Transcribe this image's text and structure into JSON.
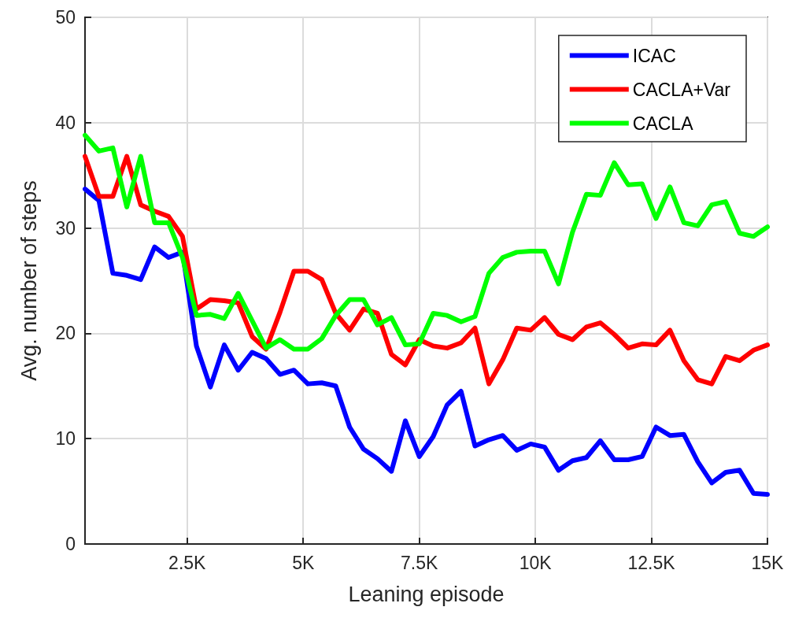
{
  "chart_data": {
    "type": "line",
    "xlabel": "Leaning episode",
    "ylabel": "Avg. number of steps",
    "x": [
      300,
      600,
      900,
      1200,
      1500,
      1800,
      2100,
      2400,
      2700,
      3000,
      3300,
      3600,
      3900,
      4200,
      4500,
      4800,
      5100,
      5400,
      5700,
      6000,
      6300,
      6600,
      6900,
      7200,
      7500,
      7800,
      8100,
      8400,
      8700,
      9000,
      9300,
      9600,
      9900,
      10200,
      10500,
      10800,
      11100,
      11400,
      11700,
      12000,
      12300,
      12600,
      12900,
      13200,
      13500,
      13800,
      14100,
      14400,
      14700,
      15000
    ],
    "series": [
      {
        "name": "ICAC",
        "color": "#0000ff",
        "values": [
          33.7,
          32.6,
          25.7,
          25.5,
          25.1,
          28.2,
          27.2,
          27.7,
          18.8,
          14.9,
          18.9,
          16.5,
          18.2,
          17.6,
          16.1,
          16.5,
          15.2,
          15.3,
          15.0,
          11.1,
          9.0,
          8.1,
          6.9,
          11.7,
          8.3,
          10.2,
          13.2,
          14.5,
          9.3,
          9.9,
          10.3,
          8.9,
          9.5,
          9.2,
          7.0,
          7.9,
          8.2,
          9.8,
          8.0,
          8.0,
          8.3,
          11.1,
          10.3,
          10.4,
          7.8,
          5.8,
          6.8,
          7.0,
          4.8,
          4.7
        ]
      },
      {
        "name": "CACLA+Var",
        "color": "#ff0000",
        "values": [
          36.8,
          33.0,
          33.0,
          36.8,
          32.2,
          31.6,
          31.1,
          29.2,
          22.3,
          23.2,
          23.1,
          22.9,
          19.7,
          18.5,
          22.0,
          25.9,
          25.9,
          25.1,
          21.9,
          20.3,
          22.3,
          21.9,
          18.0,
          17.0,
          19.4,
          18.8,
          18.6,
          19.1,
          20.5,
          15.2,
          17.5,
          20.5,
          20.3,
          21.5,
          19.9,
          19.4,
          20.6,
          21.0,
          19.9,
          18.6,
          19.0,
          18.9,
          20.3,
          17.4,
          15.6,
          15.2,
          17.8,
          17.4,
          18.4,
          18.9
        ]
      },
      {
        "name": "CACLA",
        "color": "#00ff00",
        "values": [
          38.8,
          37.3,
          37.6,
          32.0,
          36.8,
          30.5,
          30.5,
          27.2,
          21.7,
          21.8,
          21.4,
          23.8,
          21.2,
          18.6,
          19.4,
          18.5,
          18.5,
          19.5,
          21.7,
          23.2,
          23.2,
          20.8,
          21.5,
          18.9,
          19.0,
          21.9,
          21.7,
          21.1,
          21.6,
          25.7,
          27.2,
          27.7,
          27.8,
          27.8,
          24.7,
          29.6,
          33.2,
          33.1,
          36.2,
          34.1,
          34.2,
          30.9,
          33.9,
          30.5,
          30.2,
          32.2,
          32.5,
          29.5,
          29.2,
          30.1
        ]
      }
    ],
    "xlim": [
      300,
      15000
    ],
    "xticks": [
      {
        "value": 2500,
        "label": "2.5K"
      },
      {
        "value": 5000,
        "label": "5K"
      },
      {
        "value": 7500,
        "label": "7.5K"
      },
      {
        "value": 10000,
        "label": "10K"
      },
      {
        "value": 12500,
        "label": "12.5K"
      },
      {
        "value": 15000,
        "label": "15K"
      }
    ],
    "ylim": [
      0,
      50
    ],
    "yticks": [
      0,
      10,
      20,
      30,
      40,
      50
    ],
    "grid": true,
    "legend": "top right",
    "marker": "none",
    "line_style": "solid"
  }
}
